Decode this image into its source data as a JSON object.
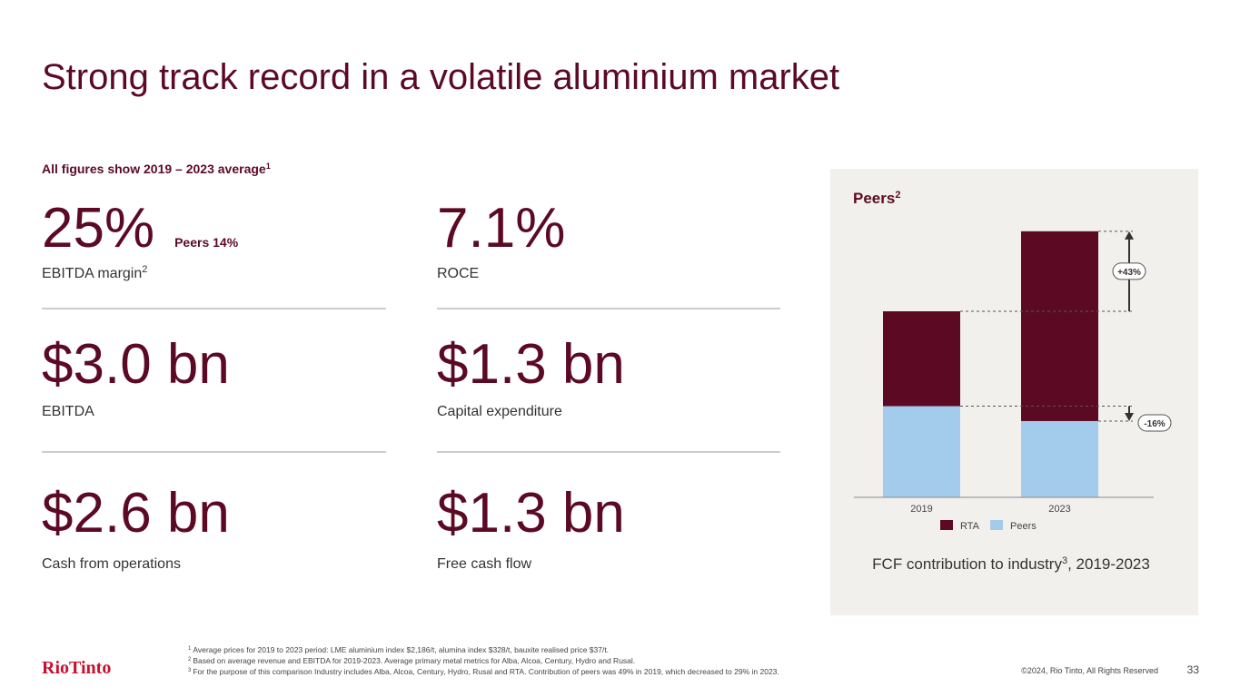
{
  "header": {
    "title": "Strong track record in a volatile aluminium market"
  },
  "subtitle": {
    "text": "All figures show 2019 – 2023 average",
    "sup": "1"
  },
  "metrics": [
    {
      "value": "25%",
      "note": "Peers 14%",
      "label": "EBITDA margin",
      "sup": "2"
    },
    {
      "value": "7.1%",
      "label": "ROCE"
    },
    {
      "value": "$3.0 bn",
      "label": "EBITDA"
    },
    {
      "value": "$1.3 bn",
      "label": "Capital expenditure"
    },
    {
      "value": "$2.6 bn",
      "label": "Cash from operations"
    },
    {
      "value": "$1.3 bn",
      "label": "Free cash flow"
    }
  ],
  "chart_data": {
    "type": "bar",
    "stacked": true,
    "title": "Peers",
    "title_sup": "2",
    "categories": [
      "2019",
      "2023"
    ],
    "series": [
      {
        "name": "RTA",
        "color": "#5c0a24",
        "values": [
          51,
          102
        ]
      },
      {
        "name": "Peers",
        "color": "#a3cbec",
        "values": [
          49,
          41
        ]
      }
    ],
    "ylim": [
      0,
      150
    ],
    "legend": "bottom",
    "annotations": [
      "+43%",
      "-16%"
    ],
    "caption": {
      "text": "FCF contribution to industry",
      "sup": "3",
      "rest": ", 2019-2023"
    }
  },
  "footnotes": [
    {
      "num": "1",
      "text": "Average prices for 2019 to 2023 period: LME aluminium index $2,186/t, alumina index $328/t, bauxite realised price $37/t."
    },
    {
      "num": "2",
      "text": "Based on average revenue and EBITDA for 2019-2023. Average primary metal metrics for Alba, Alcoa, Century, Hydro and Rusal."
    },
    {
      "num": "3",
      "text": "For the purpose of this comparison Industry includes Alba, Alcoa, Century, Hydro, Rusal and RTA. Contribution of peers was 49% in 2019, which decreased to 29% in 2023."
    }
  ],
  "footer": {
    "logo": "RioTinto",
    "copyright": "©2024, Rio Tinto, All Rights Reserved",
    "page": "33"
  }
}
